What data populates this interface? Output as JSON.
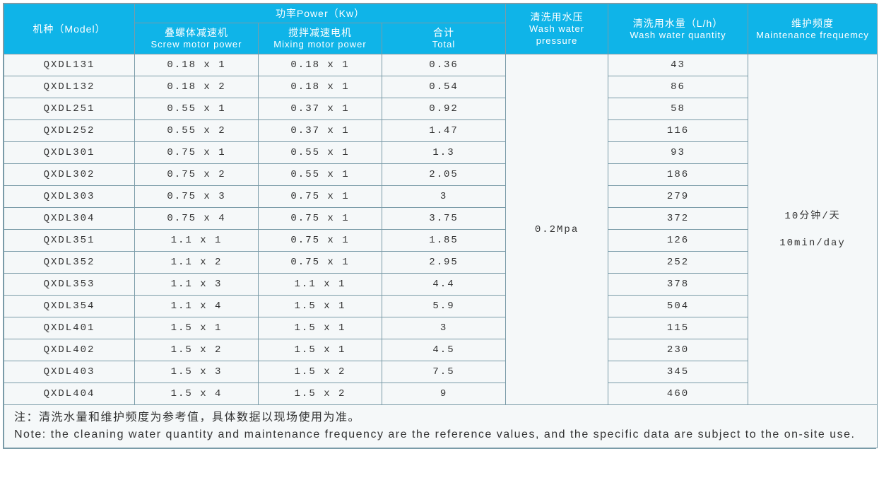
{
  "colors": {
    "header_bg": "#0fb4e8",
    "header_text": "#ffffff",
    "cell_bg": "#f5f8f9",
    "cell_text": "#333333",
    "border": "#7a9ba8"
  },
  "header": {
    "model": {
      "cn": "机种（Model）"
    },
    "power_group": {
      "cn": "功率Power（Kw）"
    },
    "screw": {
      "cn": "叠螺体减速机",
      "en": "Screw motor power"
    },
    "mixing": {
      "cn": "搅拌减速电机",
      "en": "Mixing motor power"
    },
    "total": {
      "cn": "合计",
      "en": "Total"
    },
    "pressure": {
      "cn": "清洗用水压",
      "en": "Wash water pressure"
    },
    "quantity": {
      "cn": "清洗用水量（L/h）",
      "en": "Wash water quantity"
    },
    "freq": {
      "cn": "维护频度",
      "en": "Maintenance frequemcy"
    }
  },
  "shared": {
    "pressure": "0.2Mpa",
    "freq_cn": "10分钟/天",
    "freq_en": "10min/day"
  },
  "rows": [
    {
      "model": "QXDL131",
      "screw": "0.18 x 1",
      "mixing": "0.18 x 1",
      "total": "0.36",
      "quantity": "43"
    },
    {
      "model": "QXDL132",
      "screw": "0.18 x 2",
      "mixing": "0.18 x 1",
      "total": "0.54",
      "quantity": "86"
    },
    {
      "model": "QXDL251",
      "screw": "0.55 x 1",
      "mixing": "0.37 x 1",
      "total": "0.92",
      "quantity": "58"
    },
    {
      "model": "QXDL252",
      "screw": "0.55 x 2",
      "mixing": "0.37 x 1",
      "total": "1.47",
      "quantity": "116"
    },
    {
      "model": "QXDL301",
      "screw": "0.75 x 1",
      "mixing": "0.55 x 1",
      "total": "1.3",
      "quantity": "93"
    },
    {
      "model": "QXDL302",
      "screw": "0.75 x 2",
      "mixing": "0.55 x 1",
      "total": "2.05",
      "quantity": "186"
    },
    {
      "model": "QXDL303",
      "screw": "0.75 x 3",
      "mixing": "0.75 x 1",
      "total": "3",
      "quantity": "279"
    },
    {
      "model": "QXDL304",
      "screw": "0.75 x 4",
      "mixing": "0.75 x 1",
      "total": "3.75",
      "quantity": "372"
    },
    {
      "model": "QXDL351",
      "screw": "1.1 x 1",
      "mixing": "0.75 x 1",
      "total": "1.85",
      "quantity": "126"
    },
    {
      "model": "QXDL352",
      "screw": "1.1 x 2",
      "mixing": "0.75 x 1",
      "total": "2.95",
      "quantity": "252"
    },
    {
      "model": "QXDL353",
      "screw": "1.1 x 3",
      "mixing": "1.1 x 1",
      "total": "4.4",
      "quantity": "378"
    },
    {
      "model": "QXDL354",
      "screw": "1.1 x 4",
      "mixing": "1.5 x 1",
      "total": "5.9",
      "quantity": "504"
    },
    {
      "model": "QXDL401",
      "screw": "1.5 x 1",
      "mixing": "1.5 x 1",
      "total": "3",
      "quantity": "115"
    },
    {
      "model": "QXDL402",
      "screw": "1.5 x 2",
      "mixing": "1.5 x 1",
      "total": "4.5",
      "quantity": "230"
    },
    {
      "model": "QXDL403",
      "screw": "1.5 x 3",
      "mixing": "1.5 x 2",
      "total": "7.5",
      "quantity": "345"
    },
    {
      "model": "QXDL404",
      "screw": "1.5 x 4",
      "mixing": "1.5 x 2",
      "total": "9",
      "quantity": "460"
    }
  ],
  "note": {
    "cn": "注：清洗水量和维护频度为参考值，具体数据以现场使用为准。",
    "en": "Note: the cleaning water quantity and maintenance frequency are the reference values, and the specific data are subject to the on-site use."
  }
}
